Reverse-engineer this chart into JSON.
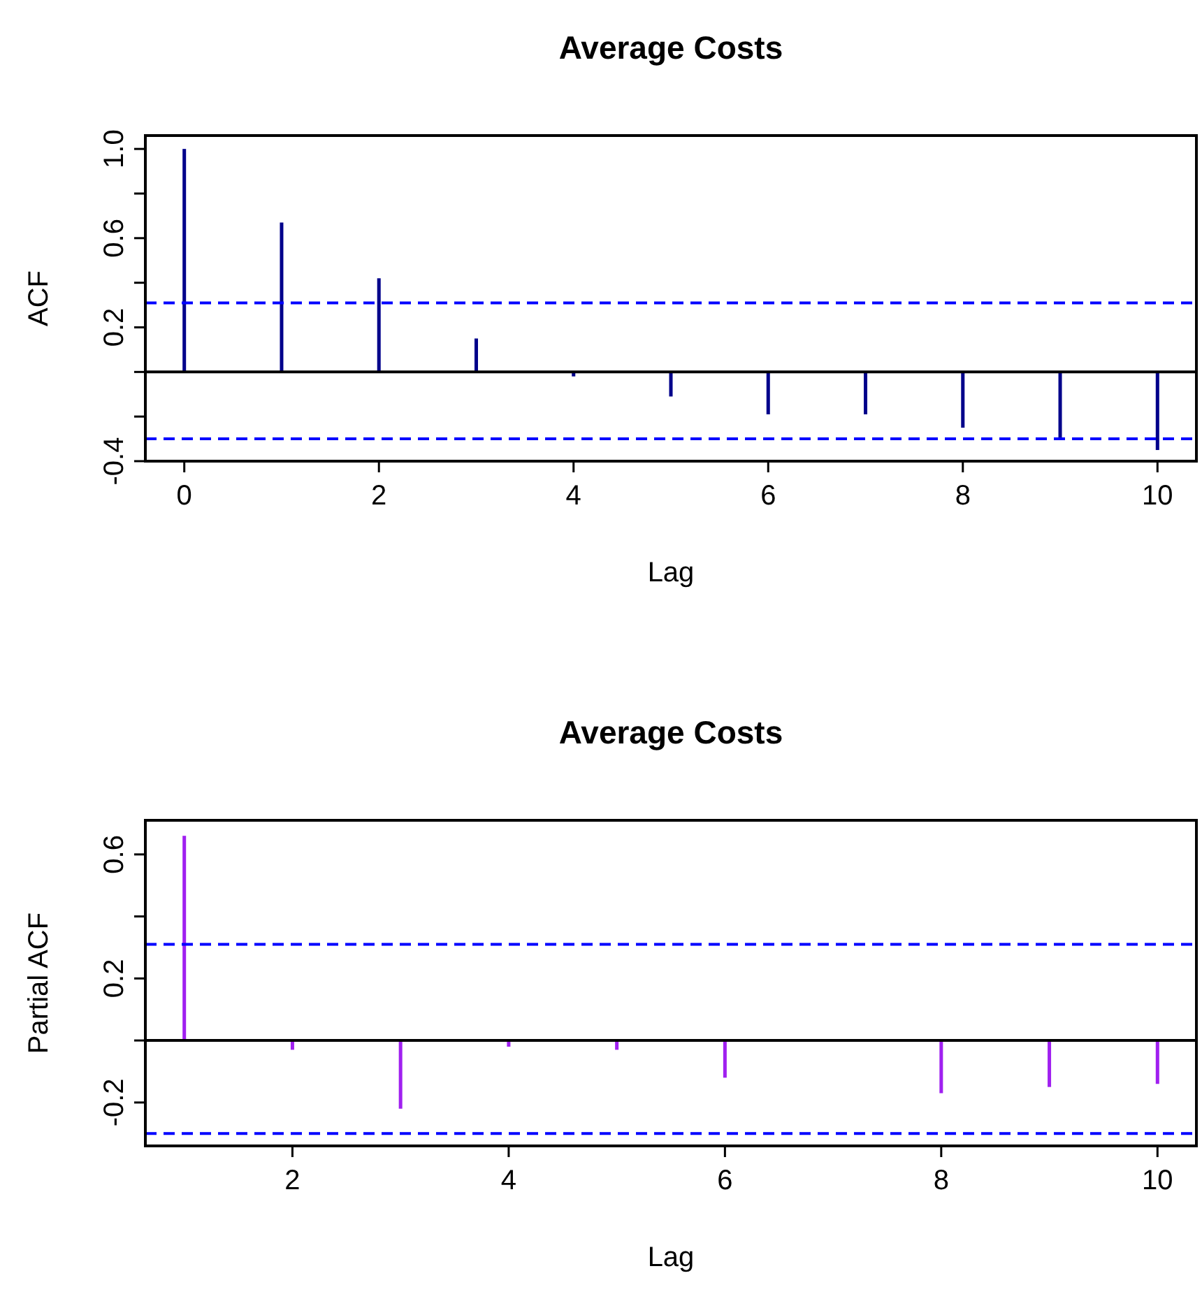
{
  "chart_data": [
    {
      "type": "bar",
      "title": "Average Costs",
      "xlabel": "Lag",
      "ylabel": "ACF",
      "x": [
        0,
        1,
        2,
        3,
        4,
        5,
        6,
        7,
        8,
        9,
        10
      ],
      "values": [
        1.0,
        0.67,
        0.42,
        0.15,
        -0.02,
        -0.11,
        -0.19,
        -0.19,
        -0.25,
        -0.3,
        -0.35
      ],
      "color": "#00008b",
      "xlim": [
        -0.4,
        10.4
      ],
      "xticks": [
        0,
        2,
        4,
        6,
        8,
        10
      ],
      "ylim": [
        -0.4,
        1.06
      ],
      "yticks": [
        {
          "value": -0.4,
          "label": "-0.4"
        },
        {
          "value": -0.2,
          "label": null
        },
        {
          "value": 0,
          "label": null
        },
        {
          "value": 0.2,
          "label": "0.2"
        },
        {
          "value": 0.4,
          "label": null
        },
        {
          "value": 0.6,
          "label": "0.6"
        },
        {
          "value": 0.8,
          "label": null
        },
        {
          "value": 1.0,
          "label": "1.0"
        }
      ],
      "ref_lines": [
        {
          "axis": "y",
          "value": 0.31,
          "color": "#0000ff",
          "line_style": "dashed"
        },
        {
          "axis": "y",
          "value": -0.3,
          "color": "#0000ff",
          "line_style": "dashed"
        },
        {
          "axis": "y",
          "value": 0,
          "color": "#000000",
          "line_style": "solid"
        }
      ]
    },
    {
      "type": "bar",
      "title": "Average Costs",
      "xlabel": "Lag",
      "ylabel": "Partial ACF",
      "x": [
        1,
        2,
        3,
        4,
        5,
        6,
        7,
        8,
        9,
        10
      ],
      "values": [
        0.66,
        -0.03,
        -0.22,
        -0.02,
        -0.03,
        -0.12,
        0,
        -0.17,
        -0.15,
        -0.14
      ],
      "color": "#a020f0",
      "xlim": [
        0.64,
        10.36
      ],
      "xticks": [
        2,
        4,
        6,
        8,
        10
      ],
      "ylim": [
        -0.34,
        0.71
      ],
      "yticks": [
        {
          "value": -0.2,
          "label": "-0.2"
        },
        {
          "value": 0,
          "label": null
        },
        {
          "value": 0.2,
          "label": "0.2"
        },
        {
          "value": 0.4,
          "label": null
        },
        {
          "value": 0.6,
          "label": "0.6"
        }
      ],
      "ref_lines": [
        {
          "axis": "y",
          "value": 0.31,
          "color": "#0000ff",
          "line_style": "dashed"
        },
        {
          "axis": "y",
          "value": -0.3,
          "color": "#0000ff",
          "line_style": "dashed"
        },
        {
          "axis": "y",
          "value": 0,
          "color": "#000000",
          "line_style": "solid"
        }
      ]
    }
  ]
}
